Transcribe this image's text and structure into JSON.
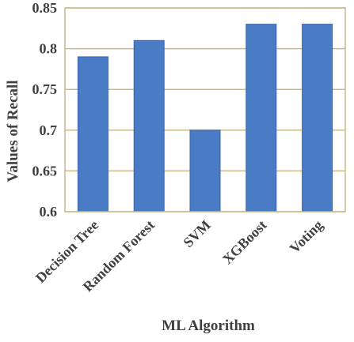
{
  "chart_data": {
    "type": "bar",
    "categories": [
      "Decision Tree",
      "Random Forest",
      "SVM",
      "XGBoost",
      "Voting"
    ],
    "values": [
      0.79,
      0.81,
      0.7,
      0.83,
      0.83
    ],
    "title": "",
    "xlabel": "ML Algorithm",
    "ylabel": "Values of Recall",
    "ylim": [
      0.6,
      0.85
    ],
    "yticks": [
      "0.6",
      "0.65",
      "0.7",
      "0.75",
      "0.8",
      "0.85"
    ],
    "grid": true,
    "bar_color": "#4a7cc6",
    "bar_edge_color": "#3a64a8",
    "grid_color": "#c8b98a",
    "frame_color": "#c8b98a"
  }
}
